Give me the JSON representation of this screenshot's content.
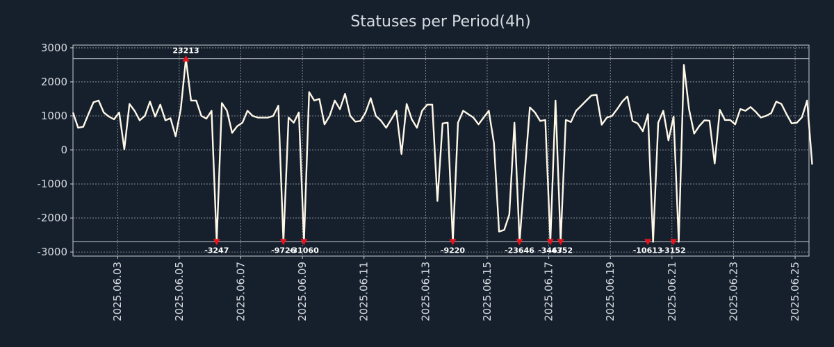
{
  "chart_data": {
    "type": "line",
    "title": "Statuses per Period(4h)",
    "xlabel": "",
    "ylabel": "",
    "ylim": [
      -3120,
      3080
    ],
    "yticks": [
      -3000,
      -2000,
      -1000,
      0,
      1000,
      2000,
      3000
    ],
    "x_range_days": [
      1.55,
      25.45
    ],
    "xticks": [
      {
        "day": 3,
        "label": "2025.06.03"
      },
      {
        "day": 5,
        "label": "2025.06.05"
      },
      {
        "day": 7,
        "label": "2025.06.07"
      },
      {
        "day": 9,
        "label": "2025.06.09"
      },
      {
        "day": 11,
        "label": "2025.06.11"
      },
      {
        "day": 13,
        "label": "2025.06.13"
      },
      {
        "day": 15,
        "label": "2025.06.15"
      },
      {
        "day": 17,
        "label": "2025.06.17"
      },
      {
        "day": 19,
        "label": "2025.06.19"
      },
      {
        "day": 21,
        "label": "2025.06.21"
      },
      {
        "day": 23,
        "label": "2025.06.23"
      },
      {
        "day": 25,
        "label": "2025.06.25"
      }
    ],
    "clip_lines": [
      2680,
      -2700
    ],
    "series": [
      {
        "name": "statuses",
        "color": "#fff8e7",
        "x_start_day": 1.55,
        "x_step_days": 0.1667,
        "values": [
          1100,
          650,
          680,
          1050,
          1400,
          1450,
          1100,
          980,
          900,
          1100,
          20,
          1350,
          1150,
          870,
          1000,
          1420,
          980,
          1330,
          870,
          930,
          400,
          1200,
          2680,
          1450,
          1450,
          1000,
          920,
          1150,
          -2700,
          1380,
          1150,
          500,
          700,
          800,
          1150,
          1000,
          950,
          950,
          950,
          1000,
          1300,
          -2700,
          950,
          800,
          1100,
          -2700,
          1700,
          1450,
          1500,
          750,
          1000,
          1450,
          1200,
          1650,
          1000,
          830,
          850,
          1100,
          1520,
          1000,
          860,
          650,
          900,
          1150,
          -120,
          1350,
          900,
          650,
          1150,
          1330,
          1330,
          -1500,
          780,
          800,
          -2700,
          800,
          1150,
          1050,
          950,
          750,
          950,
          1150,
          200,
          -2400,
          -2350,
          -1900,
          800,
          -2700,
          -700,
          1250,
          1100,
          850,
          880,
          -2700,
          1450,
          -2700,
          880,
          820,
          1150,
          1300,
          1450,
          1600,
          1620,
          740,
          950,
          1000,
          1200,
          1420,
          1570,
          850,
          780,
          550,
          1050,
          -2700,
          800,
          1150,
          280,
          980,
          -2700,
          2500,
          1200,
          480,
          700,
          870,
          860,
          -400,
          1180,
          880,
          880,
          750,
          1200,
          1150,
          1260,
          1120,
          950,
          1000,
          1080,
          1420,
          1350,
          1050,
          780,
          800,
          960,
          1450,
          -430
        ]
      }
    ],
    "annotations": [
      {
        "label": "23213",
        "day": 5.217,
        "value": 2680,
        "kind": "max"
      },
      {
        "label": "-3247",
        "day": 6.217,
        "value": -2700,
        "kind": "min"
      },
      {
        "label": "-9726",
        "day": 8.383,
        "value": -2700,
        "kind": "min"
      },
      {
        "label": "-31060",
        "day": 9.05,
        "value": -2700,
        "kind": "min"
      },
      {
        "label": "-9220",
        "day": 13.883,
        "value": -2700,
        "kind": "min"
      },
      {
        "label": "-23646",
        "day": 16.05,
        "value": -2700,
        "kind": "min"
      },
      {
        "label": "-3467",
        "day": 17.05,
        "value": -2700,
        "kind": "min"
      },
      {
        "label": "-4352",
        "day": 17.383,
        "value": -2700,
        "kind": "min"
      },
      {
        "label": "-10613",
        "day": 20.217,
        "value": -2700,
        "kind": "min"
      },
      {
        "label": "-3152",
        "day": 21.05,
        "value": -2700,
        "kind": "min"
      }
    ],
    "colors": {
      "background": "#16202d",
      "line": "#fff8e7",
      "marker": "#e8121c",
      "grid": "#c8ccd2",
      "text": "#d7dce2",
      "annotation": "#ffffff"
    }
  }
}
